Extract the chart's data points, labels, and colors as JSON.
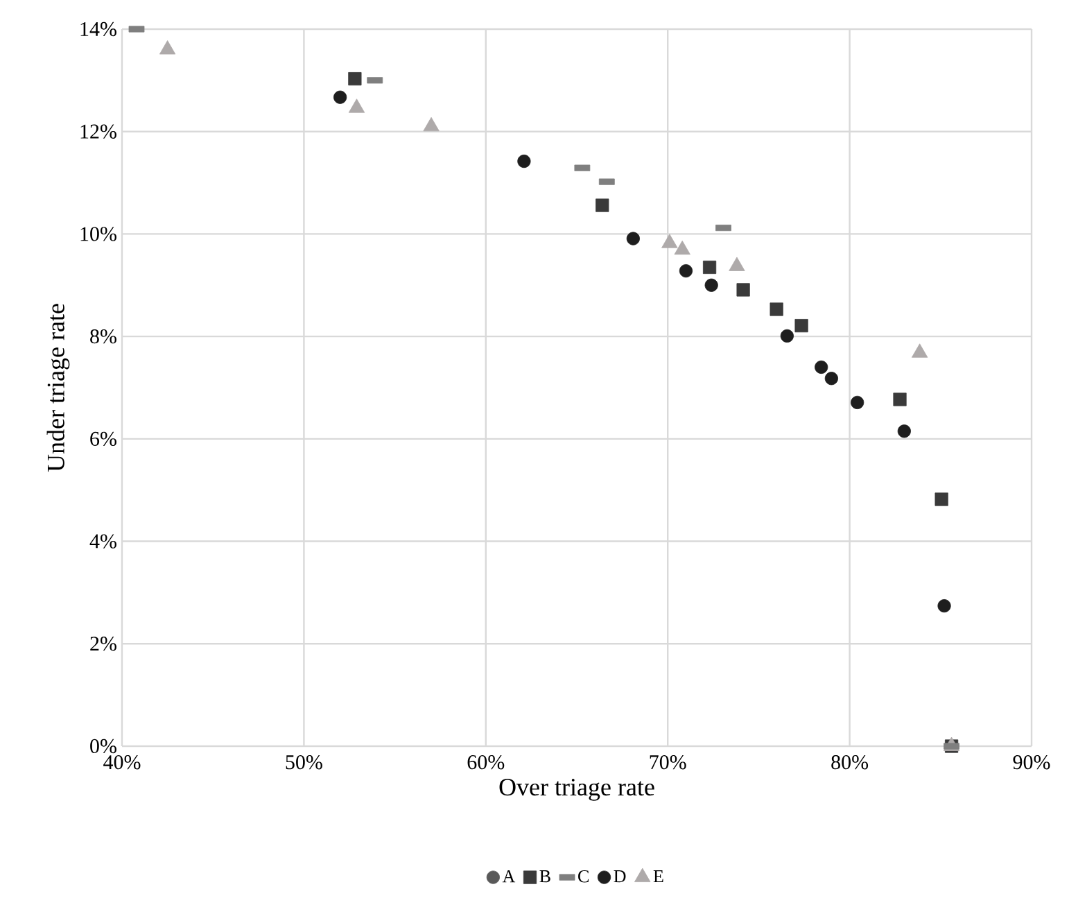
{
  "chart_data": {
    "type": "scatter",
    "xlabel": "Over triage rate",
    "ylabel": "Under triage rate",
    "xlim": [
      40,
      90
    ],
    "ylim": [
      0,
      14
    ],
    "xticks": [
      {
        "value": 40,
        "label": "40%"
      },
      {
        "value": 50,
        "label": "50%"
      },
      {
        "value": 60,
        "label": "60%"
      },
      {
        "value": 70,
        "label": "70%"
      },
      {
        "value": 80,
        "label": "80%"
      },
      {
        "value": 90,
        "label": "90%"
      }
    ],
    "yticks": [
      {
        "value": 0,
        "label": "0%"
      },
      {
        "value": 2,
        "label": "2%"
      },
      {
        "value": 4,
        "label": "4%"
      },
      {
        "value": 6,
        "label": "6%"
      },
      {
        "value": 8,
        "label": "8%"
      },
      {
        "value": 10,
        "label": "10%"
      },
      {
        "value": 12,
        "label": "12%"
      },
      {
        "value": 14,
        "label": "14%"
      }
    ],
    "grid": true,
    "legend": "bottom",
    "series": [
      {
        "name": "A",
        "color": "#595959",
        "marker": "circle"
      },
      {
        "name": "B",
        "color": "#3a3a3a",
        "marker": "square",
        "x": [
          52.8,
          66.4,
          72.3,
          74.15,
          75.98,
          77.35,
          82.76,
          85.05,
          85.6
        ],
        "values": [
          13.03,
          10.56,
          9.35,
          8.91,
          8.53,
          8.21,
          6.77,
          4.82,
          0
        ]
      },
      {
        "name": "C",
        "color": "#7f7f7f",
        "x": [
          40.8,
          53.9,
          65.3,
          66.65,
          73.06,
          85.6
        ],
        "values": [
          14.0,
          13.0,
          11.29,
          11.02,
          10.12,
          0
        ]
      },
      {
        "name": "D",
        "color": "#1e1e1e",
        "marker": "circle",
        "x": [
          51.99,
          62.1,
          68.1,
          71.0,
          72.4,
          76.56,
          78.44,
          79.0,
          80.42,
          83.0,
          85.2
        ],
        "values": [
          12.67,
          11.42,
          9.91,
          9.28,
          9.0,
          8.01,
          7.4,
          7.18,
          6.71,
          6.15,
          2.74
        ]
      },
      {
        "name": "E",
        "color": "#aeaaaa",
        "marker": "triangle",
        "x": [
          42.5,
          52.9,
          57.0,
          70.1,
          70.8,
          73.8,
          83.85,
          85.6
        ],
        "values": [
          13.6,
          12.46,
          12.1,
          9.82,
          9.69,
          9.37,
          7.68,
          0
        ]
      }
    ]
  }
}
